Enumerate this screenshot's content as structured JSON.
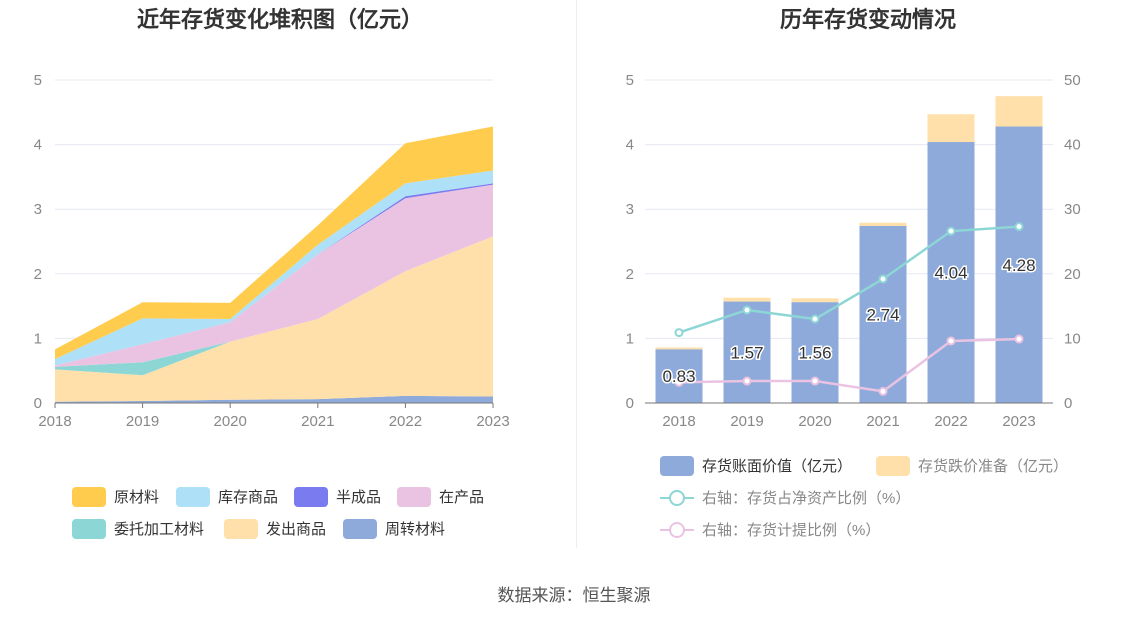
{
  "chart_data": [
    {
      "type": "area",
      "stacked": true,
      "title": "近年存货变化堆积图（亿元）",
      "categories": [
        "2018",
        "2019",
        "2020",
        "2021",
        "2022",
        "2023"
      ],
      "y_ticks": [
        "0",
        "1",
        "2",
        "3",
        "4",
        "5"
      ],
      "ylim": [
        0,
        5
      ],
      "series": [
        {
          "name": "周转材料",
          "color": "#8eaadb",
          "values": [
            0.02,
            0.03,
            0.05,
            0.06,
            0.11,
            0.1
          ]
        },
        {
          "name": "发出商品",
          "color": "#ffe0ab",
          "values": [
            0.5,
            0.4,
            0.9,
            1.24,
            1.93,
            2.48
          ]
        },
        {
          "name": "委托加工材料",
          "color": "#8dd6d6",
          "values": [
            0.04,
            0.2,
            0.0,
            0.0,
            0.0,
            0.0
          ]
        },
        {
          "name": "在产品",
          "color": "#ebc3e2",
          "values": [
            0.02,
            0.28,
            0.3,
            1.0,
            1.13,
            0.8
          ]
        },
        {
          "name": "半成品",
          "color": "#7b7bf0",
          "values": [
            0.0,
            0.0,
            0.0,
            0.0,
            0.03,
            0.02
          ]
        },
        {
          "name": "库存商品",
          "color": "#aee0f7",
          "values": [
            0.1,
            0.4,
            0.05,
            0.15,
            0.2,
            0.2
          ]
        },
        {
          "name": "原材料",
          "color": "#ffcc4d",
          "values": [
            0.15,
            0.25,
            0.25,
            0.3,
            0.62,
            0.68
          ]
        }
      ]
    },
    {
      "type": "bar",
      "stacked": true,
      "title": "历年存货变动情况",
      "categories": [
        "2018",
        "2019",
        "2020",
        "2021",
        "2022",
        "2023"
      ],
      "y_ticks": [
        "0",
        "1",
        "2",
        "3",
        "4",
        "5"
      ],
      "y2_ticks": [
        "0",
        "10",
        "20",
        "30",
        "40",
        "50"
      ],
      "ylim": [
        0,
        5
      ],
      "y2lim": [
        0,
        50
      ],
      "series": [
        {
          "name": "存货账面价值（亿元）",
          "color": "#8eaadb",
          "values": [
            0.83,
            1.57,
            1.56,
            2.74,
            4.04,
            4.28
          ],
          "labels": [
            "0.83",
            "1.57",
            "1.56",
            "2.74",
            "4.04",
            "4.28"
          ]
        },
        {
          "name": "存货跌价准备（亿元）",
          "color": "#ffe0ab",
          "values": [
            0.03,
            0.06,
            0.06,
            0.05,
            0.43,
            0.47
          ]
        }
      ],
      "line_series": [
        {
          "name": "右轴：存货占净资产比例（%）",
          "color": "#8dd6d6",
          "axis": "right",
          "values": [
            10.9,
            14.4,
            13.0,
            19.2,
            26.6,
            27.3
          ]
        },
        {
          "name": "右轴：存货计提比例（%）",
          "color": "#ebc3e2",
          "axis": "right",
          "values": [
            3.2,
            3.4,
            3.4,
            1.8,
            9.6,
            9.9
          ]
        }
      ]
    }
  ],
  "source": "数据来源：恒生聚源"
}
